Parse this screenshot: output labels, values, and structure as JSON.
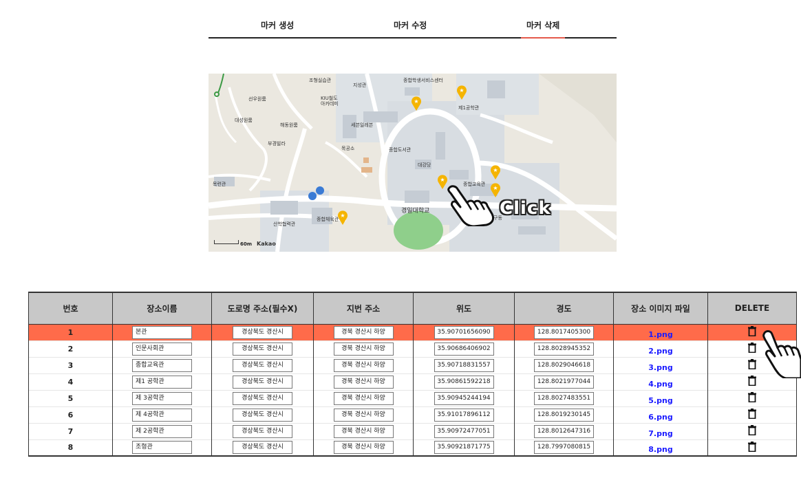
{
  "tabs": [
    {
      "label": "마커 생성"
    },
    {
      "label": "마커 수정"
    },
    {
      "label": "마커 삭제",
      "active": true
    }
  ],
  "map": {
    "labels": [
      "조형실습관",
      "지성관",
      "종합학생서비스센터",
      "선우원룸",
      "KIU철도아카데미",
      "제1공학관",
      "대성원룸",
      "해동원룸",
      "세븐일레븐",
      "부경빌라",
      "목공소",
      "종합도서관",
      "대강당",
      "목련관",
      "종합교육관",
      "경일대학교",
      "산학협력관",
      "종합체육관",
      "구동"
    ],
    "scale_text": "60m",
    "brand": "Kakao",
    "overlay_text": "Click"
  },
  "table": {
    "headers": [
      "번호",
      "장소이름",
      "도로명 주소(필수X)",
      "지번 주소",
      "위도",
      "경도",
      "장소 이미지 파일",
      "DELETE"
    ],
    "rows": [
      {
        "num": "1",
        "name": "본관",
        "road": "경상북도 경산시",
        "lot": "경북 경산시 하양",
        "lat": "35.90701656090",
        "lng": "128.8017405300",
        "file": "1.png"
      },
      {
        "num": "2",
        "name": "인문사회관",
        "road": "경상북도 경산시",
        "lot": "경북 경산시 하양",
        "lat": "35.90686406902",
        "lng": "128.8028945352",
        "file": "2.png"
      },
      {
        "num": "3",
        "name": "종합교육관",
        "road": "경상북도 경산시",
        "lot": "경북 경산시 하양",
        "lat": "35.90718831557",
        "lng": "128.8029046618",
        "file": "3.png"
      },
      {
        "num": "4",
        "name": "제1 공학관",
        "road": "경상북도 경산시",
        "lot": "경북 경산시 하양",
        "lat": "35.90861592218",
        "lng": "128.8021977044",
        "file": "4.png"
      },
      {
        "num": "5",
        "name": "제 3공학관",
        "road": "경상북도 경산시",
        "lot": "경북 경산시 하양",
        "lat": "35.90945244194",
        "lng": "128.8027483551",
        "file": "5.png"
      },
      {
        "num": "6",
        "name": "제 4공학관",
        "road": "경상북도 경산시",
        "lot": "경북 경산시 하양",
        "lat": "35.91017896112",
        "lng": "128.8019230145",
        "file": "6.png"
      },
      {
        "num": "7",
        "name": "제 2공학관",
        "road": "경상북도 경산시",
        "lot": "경북 경산시 하양",
        "lat": "35.90972477051",
        "lng": "128.8012647316",
        "file": "7.png"
      },
      {
        "num": "8",
        "name": "조형관",
        "road": "경상북도 경산시",
        "lot": "경북 경산시 하양",
        "lat": "35.90921871775",
        "lng": "128.7997080815",
        "file": "8.png"
      }
    ],
    "selected_row": 0
  },
  "colors": {
    "selected_row": "#ff6b4a",
    "active_tab_underline": "#e4584a",
    "link": "#1a1aff",
    "marker": "#f5b400"
  },
  "icons": {
    "delete": "trash-icon",
    "marker": "star-marker-icon",
    "pointer": "hand-pointer-icon"
  }
}
